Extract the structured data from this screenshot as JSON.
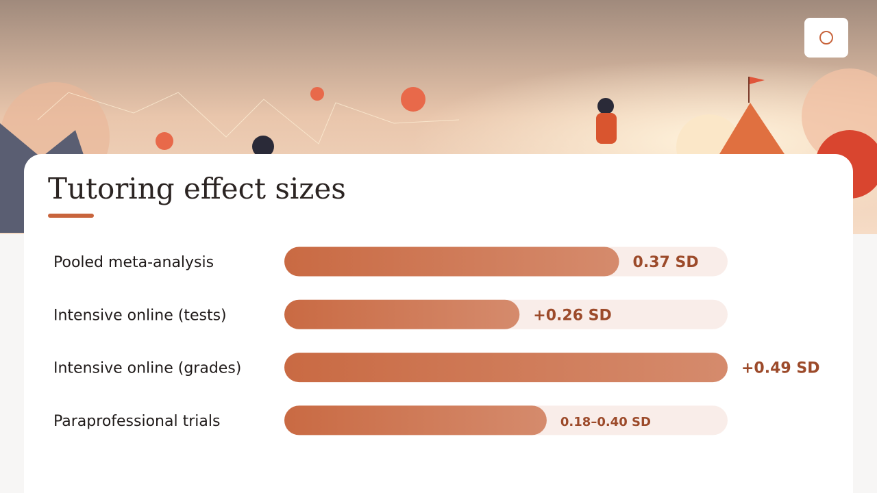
{
  "chart_data": {
    "type": "hbar",
    "title": "Tutoring effect sizes",
    "categories": [
      "Pooled meta-analysis",
      "Intensive online (tests)",
      "Intensive online (grades)",
      "Paraprofessional trials"
    ],
    "values": [
      0.37,
      0.26,
      0.49,
      null
    ],
    "ranges": [
      null,
      null,
      null,
      [
        0.18,
        0.4
      ]
    ],
    "value_labels": [
      "0.37 SD",
      "+0.26 SD",
      "+0.49 SD",
      "0.18–0.40 SD"
    ],
    "color": "#c96a43",
    "xlim": [
      0,
      0.49
    ]
  }
}
